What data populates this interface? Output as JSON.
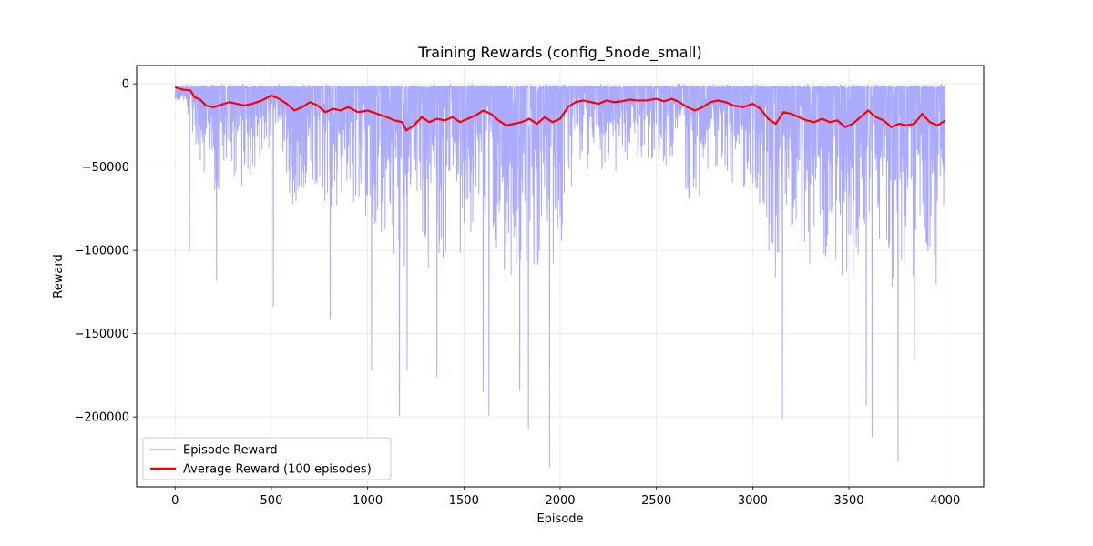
{
  "chart_data": {
    "type": "line",
    "title": "Training Rewards (config_5node_small)",
    "xlabel": "Episode",
    "ylabel": "Reward",
    "xlim": [
      -200,
      4200
    ],
    "ylim": [
      -242000,
      11000
    ],
    "xticks": [
      0,
      500,
      1000,
      1500,
      2000,
      2500,
      3000,
      3500,
      4000
    ],
    "yticks": [
      0,
      -50000,
      -100000,
      -150000,
      -200000
    ],
    "grid": true,
    "legend_position": "lower-left",
    "n_episodes": 4000,
    "series": [
      {
        "name": "Episode Reward",
        "color": "#aaaaff",
        "kind": "noisy-episode-rewards",
        "baseline": -1000,
        "notable_minima": [
          {
            "x": 75,
            "y": -100000
          },
          {
            "x": 215,
            "y": -118000
          },
          {
            "x": 510,
            "y": -134000
          },
          {
            "x": 805,
            "y": -141000
          },
          {
            "x": 1020,
            "y": -172000
          },
          {
            "x": 1165,
            "y": -199000
          },
          {
            "x": 1205,
            "y": -172000
          },
          {
            "x": 1360,
            "y": -176000
          },
          {
            "x": 1600,
            "y": -185000
          },
          {
            "x": 1630,
            "y": -199000
          },
          {
            "x": 1790,
            "y": -184000
          },
          {
            "x": 1835,
            "y": -207000
          },
          {
            "x": 1945,
            "y": -230000
          },
          {
            "x": 3155,
            "y": -201000
          },
          {
            "x": 3590,
            "y": -193000
          },
          {
            "x": 3620,
            "y": -212000
          },
          {
            "x": 3755,
            "y": -227000
          },
          {
            "x": 3840,
            "y": -165000
          }
        ]
      },
      {
        "name": "Average Reward (100 episodes)",
        "color": "#ff0000",
        "x": [
          0,
          40,
          80,
          100,
          130,
          160,
          200,
          240,
          280,
          320,
          360,
          400,
          450,
          500,
          540,
          580,
          620,
          660,
          700,
          740,
          780,
          820,
          860,
          900,
          950,
          1000,
          1050,
          1100,
          1140,
          1180,
          1200,
          1240,
          1280,
          1320,
          1360,
          1400,
          1440,
          1480,
          1520,
          1560,
          1600,
          1640,
          1680,
          1720,
          1760,
          1800,
          1840,
          1880,
          1920,
          1960,
          2000,
          2040,
          2080,
          2120,
          2160,
          2200,
          2240,
          2280,
          2320,
          2360,
          2400,
          2450,
          2500,
          2540,
          2580,
          2620,
          2660,
          2700,
          2740,
          2780,
          2820,
          2860,
          2900,
          2950,
          3000,
          3040,
          3080,
          3120,
          3160,
          3200,
          3240,
          3280,
          3320,
          3360,
          3400,
          3440,
          3480,
          3520,
          3560,
          3600,
          3640,
          3680,
          3720,
          3760,
          3800,
          3840,
          3880,
          3920,
          3960,
          4000
        ],
        "y": [
          -2000,
          -3500,
          -4000,
          -8000,
          -9500,
          -13000,
          -14000,
          -12500,
          -11000,
          -12000,
          -13000,
          -12000,
          -10000,
          -7000,
          -9000,
          -12000,
          -16000,
          -14000,
          -11000,
          -13000,
          -17000,
          -15000,
          -16000,
          -14000,
          -17000,
          -16000,
          -18000,
          -20000,
          -22000,
          -23000,
          -28000,
          -25000,
          -20000,
          -23000,
          -21000,
          -22000,
          -20000,
          -23000,
          -21000,
          -19000,
          -16000,
          -18000,
          -22000,
          -25000,
          -24000,
          -23000,
          -21000,
          -24000,
          -20000,
          -23000,
          -21000,
          -14000,
          -11000,
          -10000,
          -11000,
          -12000,
          -10000,
          -11000,
          -10500,
          -9500,
          -10000,
          -10000,
          -9000,
          -10500,
          -9000,
          -11000,
          -14000,
          -16000,
          -14000,
          -11000,
          -10000,
          -11000,
          -13000,
          -14000,
          -12000,
          -15000,
          -21000,
          -24000,
          -17000,
          -18000,
          -20000,
          -22000,
          -23000,
          -21000,
          -23000,
          -22000,
          -26000,
          -24000,
          -20000,
          -16000,
          -20000,
          -22000,
          -26000,
          -24000,
          -25000,
          -24000,
          -18000,
          -23000,
          -25000,
          -22000
        ]
      }
    ]
  }
}
